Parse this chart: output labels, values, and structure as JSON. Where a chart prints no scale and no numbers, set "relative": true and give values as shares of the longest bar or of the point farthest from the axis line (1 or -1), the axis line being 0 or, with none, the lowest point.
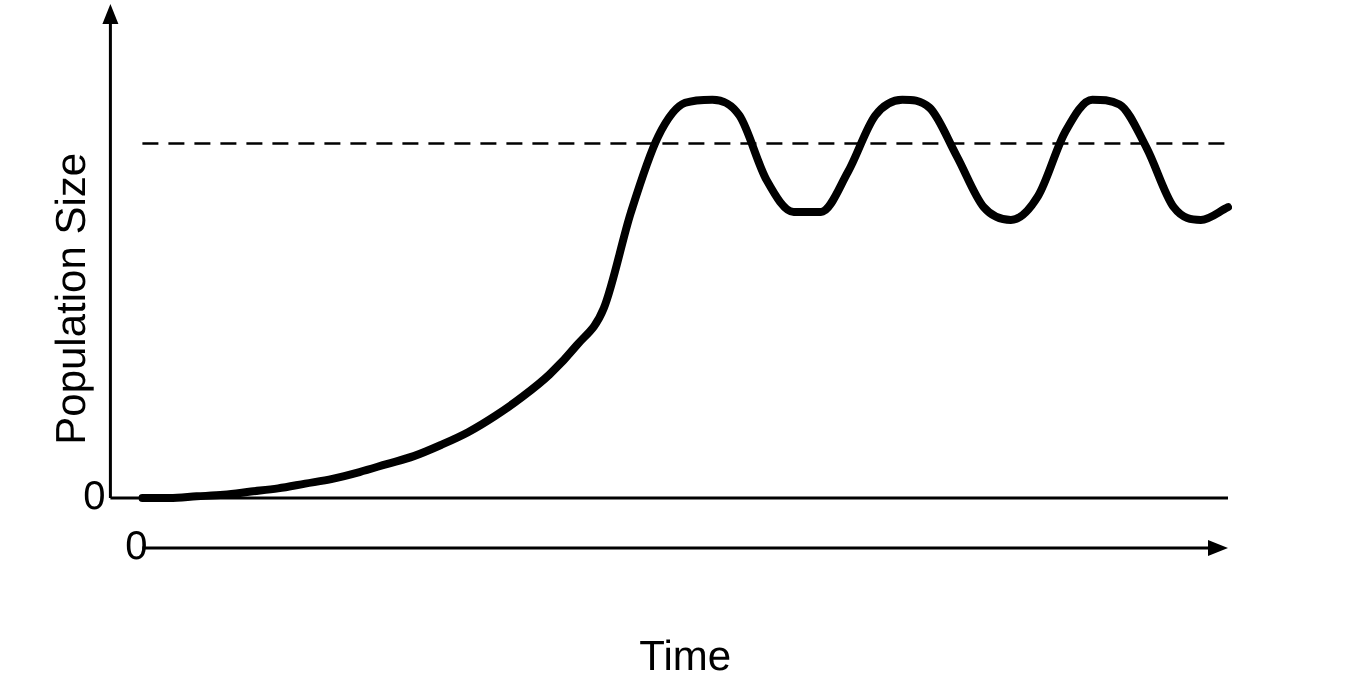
{
  "chart_data": {
    "type": "line",
    "relative": true,
    "xlabel": "Time",
    "ylabel": "Population Size",
    "color": "#000000",
    "line_style": "solid",
    "marker": "none",
    "grid": false,
    "legend": false,
    "categories": [
      null,
      null,
      null,
      null,
      null,
      null,
      null,
      null,
      null,
      null,
      null,
      null,
      null,
      null,
      null,
      null,
      null,
      null,
      null,
      null,
      null,
      null,
      null,
      null,
      null,
      null,
      null,
      null,
      null,
      null,
      null,
      null,
      null,
      null,
      null,
      null,
      null,
      null,
      null,
      null,
      null
    ],
    "values": [
      0,
      0,
      0.004,
      0.008,
      0.016,
      0.024,
      0.036,
      0.048,
      0.065,
      0.085,
      0.105,
      0.133,
      0.165,
      0.206,
      0.254,
      0.31,
      0.383,
      0.476,
      0.717,
      0.907,
      0.992,
      1,
      0.96,
      0.798,
      0.718,
      0.718,
      0.819,
      0.96,
      1,
      0.98,
      0.859,
      0.73,
      0.698,
      0.758,
      0.919,
      1,
      0.988,
      0.879,
      0.73,
      0.698,
      0.73
    ],
    "ref_lines": [
      {
        "axis": "y",
        "value": 0.89,
        "line_style": "dashed",
        "color": "#000000"
      }
    ],
    "annotations": [
      "0",
      "0"
    ]
  }
}
